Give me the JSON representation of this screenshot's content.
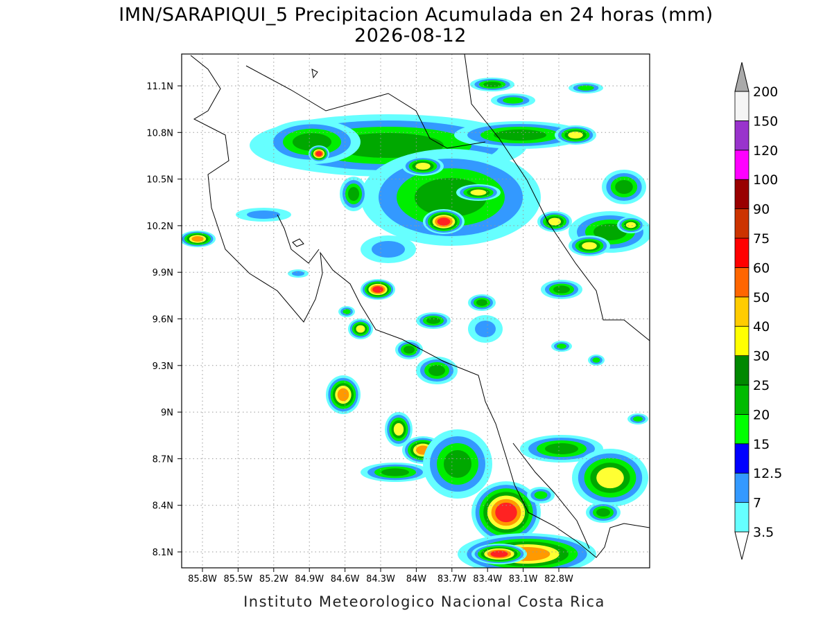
{
  "title": "IMN/SARAPIQUI_5 Precipitacion Acumulada en 24 horas (mm)",
  "date": "2026-08-12",
  "lon_labels": [
    "85.8W",
    "85.5W",
    "85.2W",
    "84.9W",
    "84.6W",
    "84.3W",
    "84W",
    "83.7W",
    "83.4W",
    "83.1W",
    "82.8W"
  ],
  "lat_labels": [
    "11.1N",
    "10.8N",
    "10.5N",
    "10.2N",
    "9.9N",
    "9.6N",
    "9.3N",
    "9N",
    "8.7N",
    "8.4N",
    "8.1N"
  ],
  "colorbar": {
    "levels": [
      3.5,
      7,
      12.5,
      15,
      20,
      25,
      30,
      40,
      50,
      60,
      75,
      90,
      100,
      120,
      150,
      200
    ],
    "colors": [
      "#66ffff",
      "#3399ff",
      "#0000ff",
      "#00ff00",
      "#00bb00",
      "#008800",
      "#ffff00",
      "#ffcc00",
      "#ff6600",
      "#ff0000",
      "#cc3300",
      "#990000",
      "#ff00ff",
      "#9933cc",
      "#f5f5f5"
    ],
    "under_color": "#ffffff",
    "over_color": "#aaaaaa"
  },
  "footer": "Instituto Meteorologico Nacional Costa Rica"
}
